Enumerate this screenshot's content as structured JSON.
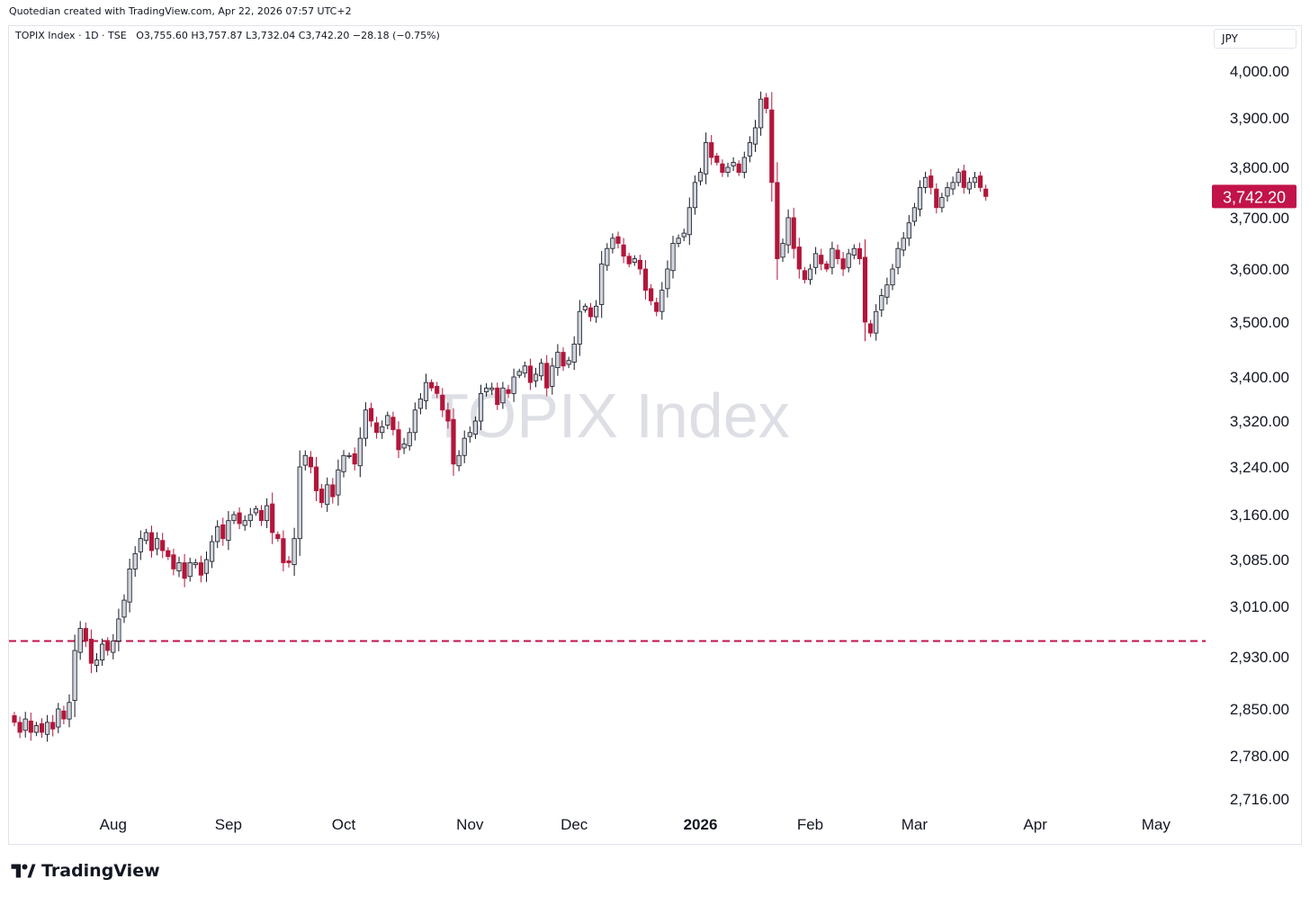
{
  "header": {
    "created_by": "Quotedian created with TradingView.com, Apr 22, 2026 07:57 UTC+2"
  },
  "symbol": {
    "name": "TOPIX Index",
    "interval": "1D",
    "exchange": "TSE",
    "open": "O3,755.60",
    "high": "H3,757.87",
    "low": "L3,732.04",
    "close": "C3,742.20",
    "change": "−28.18 (−0.75%)"
  },
  "currency": "JPY",
  "watermark": "TOPIX Index",
  "last_price_label": "3,742.20",
  "brand": {
    "name": "TradingView"
  },
  "colors": {
    "up": "#d1d4dc",
    "up_border": "#131722",
    "down": "#b2163a",
    "accent": "#c2134a",
    "axis_text": "#131722"
  },
  "chart_data": {
    "type": "candlestick",
    "title": "TOPIX Index · 1D · TSE",
    "y_axis_side": "right",
    "ylim": [
      2690,
      4050
    ],
    "y_ticks": [
      2716,
      2780,
      2850,
      2930,
      3010,
      3085,
      3160,
      3240,
      3320,
      3400,
      3500,
      3600,
      3700,
      3800,
      3900,
      4000
    ],
    "y_tick_labels": [
      "2,716.00",
      "2,780.00",
      "2,850.00",
      "2,930.00",
      "3,010.00",
      "3,085.00",
      "3,160.00",
      "3,240.00",
      "3,320.00",
      "3,400.00",
      "3,500.00",
      "3,600.00",
      "3,700.00",
      "3,800.00",
      "3,900.00",
      "4,000.00"
    ],
    "x_ticks": [
      {
        "label": "Aug",
        "bold": false,
        "index": 18
      },
      {
        "label": "Sep",
        "bold": false,
        "index": 39
      },
      {
        "label": "Oct",
        "bold": false,
        "index": 60
      },
      {
        "label": "Nov",
        "bold": false,
        "index": 83
      },
      {
        "label": "Dec",
        "bold": false,
        "index": 102
      },
      {
        "label": "2026",
        "bold": true,
        "index": 125
      },
      {
        "label": "Feb",
        "bold": false,
        "index": 145
      },
      {
        "label": "Mar",
        "bold": false,
        "index": 164
      },
      {
        "label": "Apr",
        "bold": false,
        "index": 186
      },
      {
        "label": "May",
        "bold": false,
        "index": 208
      }
    ],
    "horizontal_line": {
      "value": 2955,
      "style": "dashed"
    },
    "last_price": 3742.2,
    "closes": [
      2830,
      2815,
      2835,
      2815,
      2825,
      2815,
      2830,
      2820,
      2850,
      2835,
      2860,
      2940,
      2975,
      2955,
      2920,
      2925,
      2950,
      2940,
      2955,
      2990,
      3020,
      3070,
      3095,
      3120,
      3130,
      3100,
      3120,
      3100,
      3090,
      3070,
      3080,
      3055,
      3080,
      3080,
      3060,
      3085,
      3115,
      3140,
      3120,
      3150,
      3160,
      3145,
      3150,
      3160,
      3170,
      3150,
      3175,
      3130,
      3120,
      3080,
      3080,
      3120,
      3240,
      3260,
      3240,
      3200,
      3180,
      3210,
      3190,
      3235,
      3260,
      3260,
      3245,
      3290,
      3340,
      3320,
      3300,
      3310,
      3330,
      3305,
      3270,
      3280,
      3300,
      3340,
      3360,
      3390,
      3380,
      3370,
      3340,
      3320,
      3245,
      3260,
      3290,
      3300,
      3320,
      3370,
      3380,
      3380,
      3350,
      3380,
      3370,
      3400,
      3410,
      3420,
      3390,
      3405,
      3425,
      3380,
      3420,
      3445,
      3420,
      3430,
      3460,
      3520,
      3530,
      3510,
      3530,
      3610,
      3640,
      3660,
      3650,
      3625,
      3610,
      3620,
      3600,
      3560,
      3540,
      3520,
      3560,
      3600,
      3650,
      3660,
      3670,
      3720,
      3770,
      3790,
      3850,
      3820,
      3810,
      3790,
      3800,
      3810,
      3790,
      3820,
      3850,
      3880,
      3940,
      3920,
      3770,
      3620,
      3650,
      3700,
      3640,
      3600,
      3580,
      3600,
      3630,
      3610,
      3600,
      3640,
      3620,
      3600,
      3630,
      3640,
      3620,
      3500,
      3480,
      3520,
      3550,
      3570,
      3600,
      3640,
      3660,
      3690,
      3720,
      3760,
      3780,
      3760,
      3720,
      3740,
      3760,
      3770,
      3790,
      3760,
      3770,
      3780,
      3760,
      3742.2
    ]
  }
}
